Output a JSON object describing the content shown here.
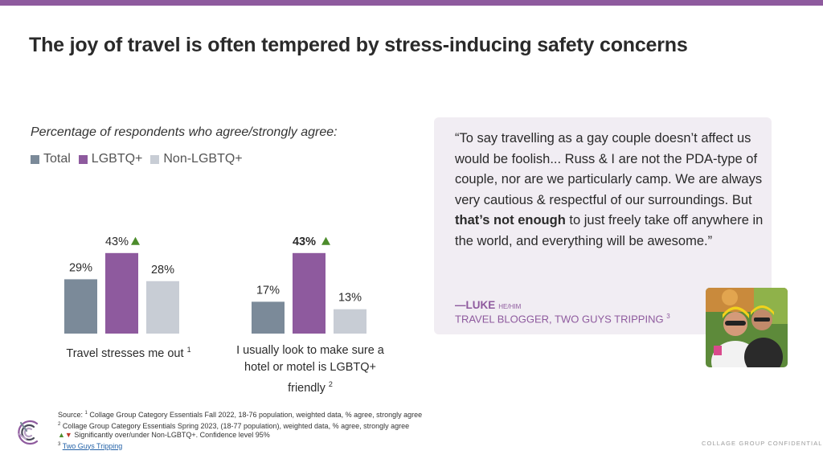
{
  "header": {
    "title": "The joy of travel is often tempered by stress-inducing safety concerns",
    "accent_color": "#8e5a9e"
  },
  "chart_data": {
    "type": "bar",
    "title": "Percentage of respondents who agree/strongly agree:",
    "series": [
      {
        "name": "Total",
        "color": "#7b8a99",
        "values": [
          29,
          17
        ]
      },
      {
        "name": "LGBTQ+",
        "color": "#8e5a9e",
        "values": [
          43,
          43
        ]
      },
      {
        "name": "Non-LGBTQ+",
        "color": "#c8cdd5",
        "values": [
          28,
          13
        ]
      }
    ],
    "categories": [
      "Travel stresses me out",
      "I usually look to make sure a hotel or motel is LGBTQ+ friendly"
    ],
    "category_footnotes": [
      "1",
      "2"
    ],
    "data_labels": [
      [
        "29%",
        "43%",
        "28%"
      ],
      [
        "17%",
        "43%",
        "13%"
      ]
    ],
    "significance": [
      [
        null,
        "up",
        null
      ],
      [
        null,
        "up",
        null
      ]
    ],
    "significance_color": "#4c8c2b",
    "ylim": [
      0,
      50
    ],
    "legend_position": "top-left",
    "grid": false
  },
  "quote": {
    "text_before_bold": "“To say travelling as a gay couple doesn’t affect us would be foolish... Russ & I are not the PDA-type of couple, nor are we particularly camp. We are always very cautious & respectful of our surroundings. But ",
    "text_bold": "that’s not enough",
    "text_after_bold": " to just freely take off anywhere in the world, and everything will be awesome.”",
    "author": "—LUKE",
    "pronoun": "HE/HIM",
    "role": "TRAVEL BLOGGER, TWO GUYS TRIPPING",
    "role_footnote": "3"
  },
  "footnotes": {
    "source_label": "Source:",
    "note1_num": "1",
    "note1": "Collage Group Category Essentials Fall 2022, 18-76 population, weighted data, % agree, strongly agree",
    "note2_num": "2",
    "note2": "Collage Group Category Essentials Spring 2023, (18-77 population), weighted data, % agree, strongly agree",
    "sig_up": "▲",
    "sig_down": "▼",
    "significance_note": "Significantly over/under Non-LGBTQ+. Confidence level 95%",
    "note3_num": "3",
    "note3_link": "Two Guys Tripping"
  },
  "footer": {
    "confidential": "COLLAGE GROUP CONFIDENTIAL"
  }
}
